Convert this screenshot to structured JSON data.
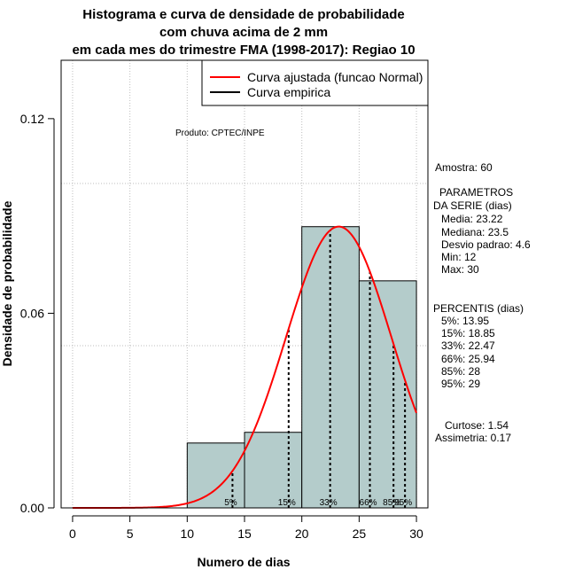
{
  "chart_data": {
    "type": "bar",
    "title_lines": [
      "Histograma e curva de densidade de probabilidade",
      "com chuva acima de 2 mm",
      "em cada mes do trimestre FMA (1998-2017): Regiao 10"
    ],
    "xlabel": "Numero de dias",
    "ylabel": "Densidade de probabilidade",
    "xlim": [
      -1,
      31
    ],
    "ylim": [
      0,
      0.138
    ],
    "x_ticks": [
      0,
      5,
      10,
      15,
      20,
      25,
      30
    ],
    "y_ticks": [
      0.0,
      0.06,
      0.12
    ],
    "y_tick_labels": [
      "0.00",
      "0.06",
      "0.12"
    ],
    "grid_x": [
      0,
      5,
      10,
      15,
      20,
      25,
      30
    ],
    "grid_y": [
      0.05,
      0.1
    ],
    "bins": [
      {
        "from": 10,
        "to": 15,
        "density": 0.02
      },
      {
        "from": 15,
        "to": 20,
        "density": 0.0233
      },
      {
        "from": 20,
        "to": 25,
        "density": 0.0867
      },
      {
        "from": 25,
        "to": 30,
        "density": 0.07
      }
    ],
    "bar_color": "#b4cccb",
    "curve": {
      "mean": 23.22,
      "sd": 4.6,
      "x_from": 0,
      "x_to": 30,
      "color": "#ff0000"
    },
    "percentile_lines": [
      {
        "label": "5%",
        "x": 13.95
      },
      {
        "label": "15%",
        "x": 18.85
      },
      {
        "label": "33%",
        "x": 22.47
      },
      {
        "label": "66%",
        "x": 25.94
      },
      {
        "label": "85%",
        "x": 28
      },
      {
        "label": "95%",
        "x": 29
      }
    ],
    "legend": [
      {
        "label": "Curva ajustada (funcao Normal)",
        "color": "#ff0000"
      },
      {
        "label": "Curva empirica",
        "color": "#000000"
      }
    ],
    "product_label": "Produto: CPTEC/INPE"
  },
  "side_panel": {
    "amostra": "Amostra: 60",
    "params_title_1": "PARAMETROS",
    "params_title_2": "DA SERIE (dias)",
    "media": "Media: 23.22",
    "mediana": "Mediana: 23.5",
    "desvio": "Desvio padrao: 4.6",
    "min": "Min: 12",
    "max": "Max: 30",
    "percentis_title": "PERCENTIS (dias)",
    "p5": "5%: 13.95",
    "p15": "15%: 18.85",
    "p33": "33%: 22.47",
    "p66": "66%: 25.94",
    "p85": "85%: 28",
    "p95": "95%: 29",
    "curtose": "Curtose: 1.54",
    "assimetria": "Assimetria: 0.17"
  }
}
